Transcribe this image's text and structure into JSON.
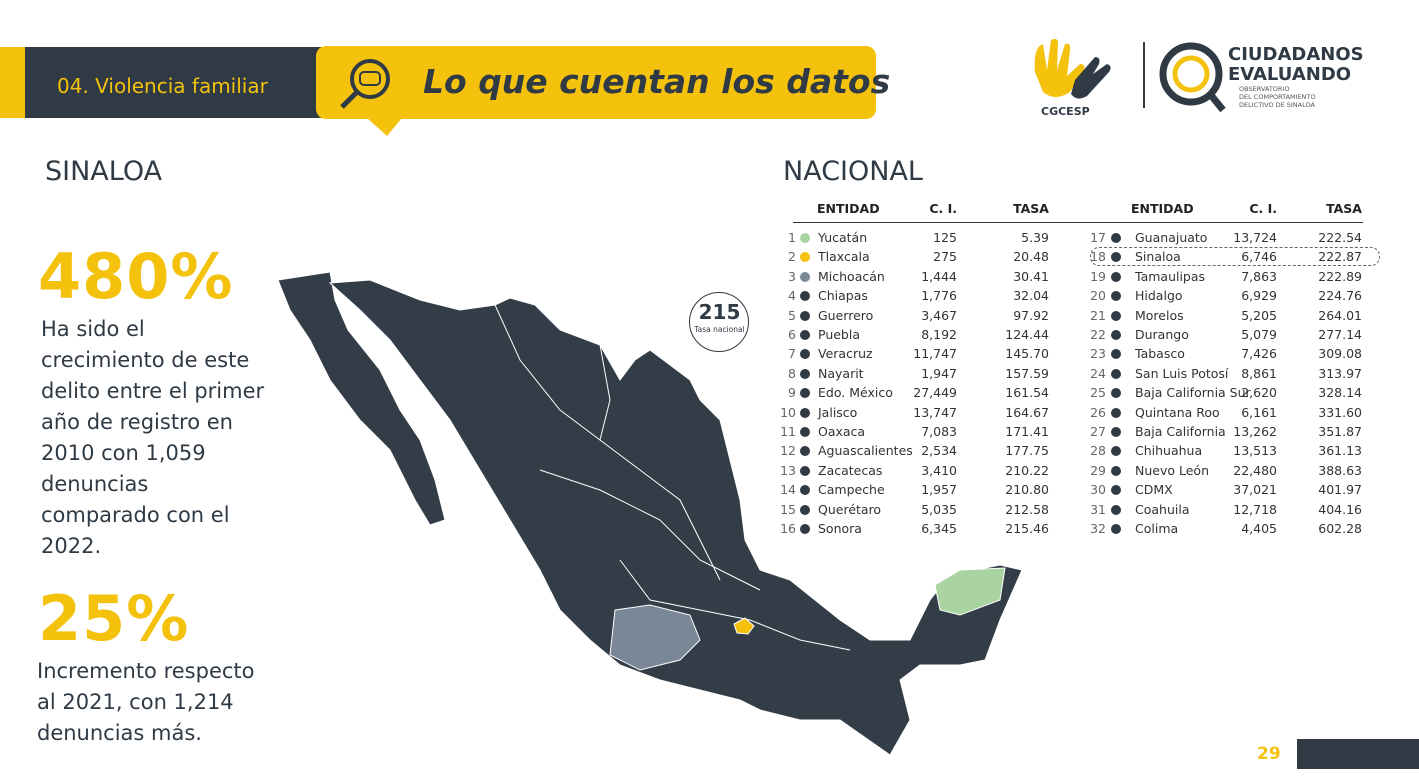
{
  "header": {
    "section": "04. Violencia familiar",
    "title": "Lo que cuentan los datos"
  },
  "logos": {
    "left": "CGCESP",
    "brand": [
      "CIUDADANOS",
      "EVALUANDO"
    ],
    "subtitle": [
      "OBSERVATORIO",
      "DEL COMPORTAMIENTO",
      "DELICTIVO DE SINALOA"
    ]
  },
  "sinaloa": {
    "heading": "SINALOA",
    "stats": [
      {
        "value": "480%",
        "text": "Ha sido el crecimiento de este delito entre el primer año de registro en 2010 con 1,059 denuncias comparado con el 2022."
      },
      {
        "value": "25%",
        "text": "Incremento respecto al 2021, con 1,214 denuncias más."
      }
    ]
  },
  "nacional": {
    "heading": "NACIONAL",
    "badge": {
      "value": "215",
      "label": "Tasa nacional"
    },
    "columns": [
      "ENTIDAD",
      "C. I.",
      "TASA"
    ],
    "rows": [
      {
        "rank": 1,
        "name": "Yucatán",
        "ci": "125",
        "tasa": "5.39",
        "color": "#a9d3a0"
      },
      {
        "rank": 2,
        "name": "Tlaxcala",
        "ci": "275",
        "tasa": "20.48",
        "color": "#f4c20d"
      },
      {
        "rank": 3,
        "name": "Michoacán",
        "ci": "1,444",
        "tasa": "30.41",
        "color": "#7a8797"
      },
      {
        "rank": 4,
        "name": "Chiapas",
        "ci": "1,776",
        "tasa": "32.04",
        "color": "#2f3a45"
      },
      {
        "rank": 5,
        "name": "Guerrero",
        "ci": "3,467",
        "tasa": "97.92",
        "color": "#2f3a45"
      },
      {
        "rank": 6,
        "name": "Puebla",
        "ci": "8,192",
        "tasa": "124.44",
        "color": "#2f3a45"
      },
      {
        "rank": 7,
        "name": "Veracruz",
        "ci": "11,747",
        "tasa": "145.70",
        "color": "#2f3a45"
      },
      {
        "rank": 8,
        "name": "Nayarit",
        "ci": "1,947",
        "tasa": "157.59",
        "color": "#2f3a45"
      },
      {
        "rank": 9,
        "name": "Edo. México",
        "ci": "27,449",
        "tasa": "161.54",
        "color": "#2f3a45"
      },
      {
        "rank": 10,
        "name": "Jalisco",
        "ci": "13,747",
        "tasa": "164.67",
        "color": "#2f3a45"
      },
      {
        "rank": 11,
        "name": "Oaxaca",
        "ci": "7,083",
        "tasa": "171.41",
        "color": "#2f3a45"
      },
      {
        "rank": 12,
        "name": "Aguascalientes",
        "ci": "2,534",
        "tasa": "177.75",
        "color": "#2f3a45"
      },
      {
        "rank": 13,
        "name": "Zacatecas",
        "ci": "3,410",
        "tasa": "210.22",
        "color": "#2f3a45"
      },
      {
        "rank": 14,
        "name": "Campeche",
        "ci": "1,957",
        "tasa": "210.80",
        "color": "#2f3a45"
      },
      {
        "rank": 15,
        "name": "Querétaro",
        "ci": "5,035",
        "tasa": "212.58",
        "color": "#2f3a45"
      },
      {
        "rank": 16,
        "name": "Sonora",
        "ci": "6,345",
        "tasa": "215.46",
        "color": "#2f3a45"
      },
      {
        "rank": 17,
        "name": "Guanajuato",
        "ci": "13,724",
        "tasa": "222.54",
        "color": "#2f3a45"
      },
      {
        "rank": 18,
        "name": "Sinaloa",
        "ci": "6,746",
        "tasa": "222.87",
        "color": "#2f3a45",
        "highlight": true
      },
      {
        "rank": 19,
        "name": "Tamaulipas",
        "ci": "7,863",
        "tasa": "222.89",
        "color": "#2f3a45"
      },
      {
        "rank": 20,
        "name": "Hidalgo",
        "ci": "6,929",
        "tasa": "224.76",
        "color": "#2f3a45"
      },
      {
        "rank": 21,
        "name": "Morelos",
        "ci": "5,205",
        "tasa": "264.01",
        "color": "#2f3a45"
      },
      {
        "rank": 22,
        "name": "Durango",
        "ci": "5,079",
        "tasa": "277.14",
        "color": "#2f3a45"
      },
      {
        "rank": 23,
        "name": "Tabasco",
        "ci": "7,426",
        "tasa": "309.08",
        "color": "#2f3a45"
      },
      {
        "rank": 24,
        "name": "San Luis Potosí",
        "ci": "8,861",
        "tasa": "313.97",
        "color": "#2f3a45"
      },
      {
        "rank": 25,
        "name": "Baja California Sur",
        "ci": "2,620",
        "tasa": "328.14",
        "color": "#2f3a45"
      },
      {
        "rank": 26,
        "name": "Quintana Roo",
        "ci": "6,161",
        "tasa": "331.60",
        "color": "#2f3a45"
      },
      {
        "rank": 27,
        "name": "Baja California",
        "ci": "13,262",
        "tasa": "351.87",
        "color": "#2f3a45"
      },
      {
        "rank": 28,
        "name": "Chihuahua",
        "ci": "13,513",
        "tasa": "361.13",
        "color": "#2f3a45"
      },
      {
        "rank": 29,
        "name": "Nuevo León",
        "ci": "22,480",
        "tasa": "388.63",
        "color": "#2f3a45"
      },
      {
        "rank": 30,
        "name": "CDMX",
        "ci": "37,021",
        "tasa": "401.97",
        "color": "#2f3a45"
      },
      {
        "rank": 31,
        "name": "Coahuila",
        "ci": "12,718",
        "tasa": "404.16",
        "color": "#2f3a45"
      },
      {
        "rank": 32,
        "name": "Colima",
        "ci": "4,405",
        "tasa": "602.28",
        "color": "#2f3a45"
      }
    ]
  },
  "page_number": "29"
}
